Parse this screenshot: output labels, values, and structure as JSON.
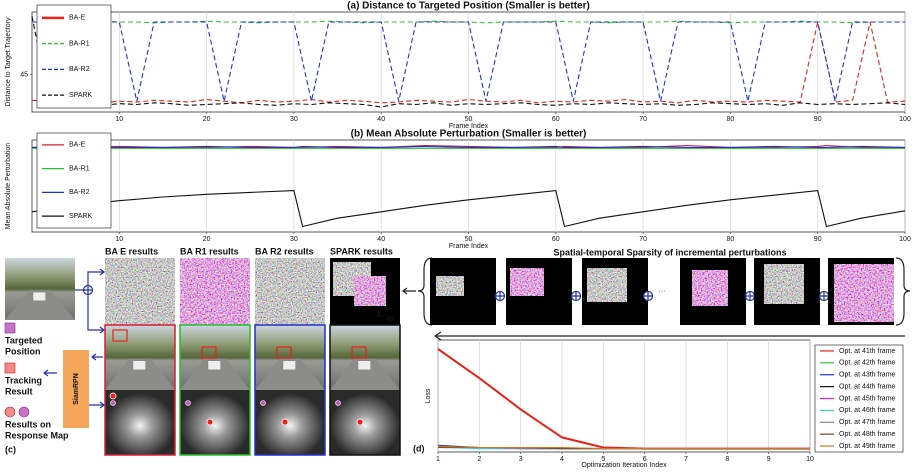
{
  "chart_data": [
    {
      "type": "line",
      "title": "(a) Distance to Targeted Position (Smaller is better)",
      "xlabel": "Frame Index",
      "ylabel": "Distance to Target Trajectory",
      "x": [
        0,
        2,
        4,
        6,
        8,
        10,
        12,
        14,
        16,
        18,
        20,
        22,
        24,
        26,
        28,
        30,
        32,
        34,
        36,
        38,
        40,
        42,
        44,
        46,
        48,
        50,
        52,
        54,
        56,
        58,
        60,
        62,
        64,
        66,
        68,
        70,
        72,
        74,
        76,
        78,
        80,
        82,
        84,
        86,
        88,
        90,
        92,
        94,
        96,
        98,
        100
      ],
      "series": [
        {
          "name": "BA-E",
          "color": "#e8221b",
          "linestyle": "dashed",
          "values": [
            14,
            13,
            12,
            15,
            11,
            13,
            12,
            14,
            13,
            12,
            15,
            13,
            11,
            14,
            12,
            13,
            15,
            12,
            14,
            13,
            11,
            12,
            14,
            13,
            12,
            15,
            13,
            12,
            14,
            11,
            13,
            12,
            14,
            13,
            15,
            12,
            13,
            11,
            14,
            12,
            13,
            12,
            14,
            13,
            12,
            108,
            12,
            14,
            108,
            12,
            13
          ]
        },
        {
          "name": "BA-R1",
          "color": "#2fbf2f",
          "linestyle": "dashed",
          "values": [
            108,
            108,
            107,
            108,
            109,
            108,
            108,
            107,
            108,
            108,
            109,
            108,
            108,
            107,
            108,
            108,
            108,
            109,
            108,
            107,
            108,
            108,
            108,
            109,
            108,
            108,
            107,
            108,
            108,
            108,
            109,
            108,
            108,
            107,
            108,
            108,
            108,
            109,
            108,
            108,
            107,
            108,
            108,
            108,
            109,
            108,
            108,
            107,
            108,
            108,
            108
          ]
        },
        {
          "name": "BA-R2",
          "color": "#1d35c9",
          "linestyle": "dashed",
          "values": [
            108,
            108,
            108,
            108,
            108,
            108,
            13,
            108,
            108,
            108,
            108,
            13,
            108,
            108,
            108,
            108,
            13,
            108,
            108,
            108,
            108,
            13,
            108,
            108,
            108,
            108,
            13,
            108,
            108,
            108,
            108,
            13,
            108,
            108,
            108,
            108,
            13,
            108,
            108,
            108,
            108,
            13,
            108,
            108,
            108,
            108,
            13,
            108,
            108,
            108,
            108
          ]
        },
        {
          "name": "SPARK",
          "color": "#111111",
          "linestyle": "dashed",
          "values": [
            115,
            10,
            9,
            11,
            8,
            10,
            9,
            11,
            10,
            8,
            9,
            10,
            11,
            9,
            8,
            10,
            9,
            11,
            10,
            9,
            6,
            10,
            9,
            11,
            8,
            10,
            9,
            10,
            11,
            9,
            8,
            10,
            9,
            11,
            10,
            9,
            10,
            8,
            9,
            11,
            10,
            9,
            10,
            8,
            11,
            9,
            10,
            9,
            10,
            11,
            9
          ]
        }
      ],
      "xlim": [
        0,
        100
      ],
      "ylim": [
        0,
        120
      ],
      "xticks": [
        10,
        20,
        30,
        40,
        50,
        60,
        70,
        80,
        90,
        100
      ],
      "yticks": [
        45
      ],
      "grid": "x",
      "legend": "upper left"
    },
    {
      "type": "line",
      "title": "(b) Mean Absolute Perturbation (Smaller is better)",
      "xlabel": "Frame Index",
      "ylabel": "Mean Absolute Perturbation",
      "x": [
        0,
        5,
        10,
        15,
        20,
        25,
        30,
        31,
        35,
        40,
        45,
        50,
        55,
        60,
        61,
        65,
        70,
        75,
        80,
        85,
        90,
        91,
        95,
        100
      ],
      "series": [
        {
          "name": "BA-E",
          "color": "#d81e3a",
          "linestyle": "solid",
          "values": [
            9.2,
            9.2,
            9.3,
            9.2,
            9.2,
            9.3,
            9.2,
            9.2,
            9.3,
            9.2,
            9.4,
            9.3,
            9.2,
            9.2,
            9.3,
            9.2,
            9.2,
            9.4,
            9.2,
            9.2,
            9.3,
            9.4,
            9.2,
            9.2
          ]
        },
        {
          "name": "BA-R1",
          "color": "#22c02a",
          "linestyle": "solid",
          "values": [
            9.1,
            9.1,
            9.1,
            9.1,
            9.1,
            9.1,
            9.1,
            9.1,
            9.1,
            9.1,
            9.1,
            9.1,
            9.1,
            9.1,
            9.1,
            9.1,
            9.1,
            9.1,
            9.1,
            9.1,
            9.1,
            9.1,
            9.1,
            9.1
          ]
        },
        {
          "name": "BA-R2",
          "color": "#2330c8",
          "linestyle": "solid",
          "values": [
            9.2,
            9.3,
            9.2,
            9.2,
            9.3,
            9.2,
            9.2,
            9.3,
            9.2,
            9.2,
            9.3,
            9.2,
            9.2,
            9.3,
            9.2,
            9.2,
            9.3,
            9.2,
            9.2,
            9.3,
            9.2,
            9.2,
            9.3,
            9.2
          ]
        },
        {
          "name": "SPARK",
          "color": "#111111",
          "linestyle": "solid",
          "values": [
            2.2,
            2.9,
            3.4,
            3.8,
            4.1,
            4.3,
            4.5,
            0.6,
            1.5,
            2.2,
            2.9,
            3.5,
            4.0,
            4.5,
            0.6,
            1.5,
            2.2,
            2.9,
            3.5,
            4.0,
            4.5,
            0.6,
            1.5,
            2.3
          ]
        }
      ],
      "xlim": [
        0,
        100
      ],
      "ylim": [
        0,
        10
      ],
      "xticks": [
        10,
        20,
        30,
        40,
        50,
        60,
        70,
        80,
        90,
        100
      ],
      "grid": "x",
      "legend": "upper left"
    },
    {
      "type": "line",
      "xlabel": "Optimization Iteration Index",
      "ylabel": "Loss",
      "x": [
        1,
        2,
        3,
        4,
        5,
        6,
        7,
        8,
        9,
        10
      ],
      "series": [
        {
          "name": "Opt. at 41th frame",
          "color": "#e8221b",
          "linestyle": "solid",
          "values": [
            0.92,
            0.66,
            0.38,
            0.13,
            0.04,
            0.03,
            0.03,
            0.03,
            0.03,
            0.03
          ]
        },
        {
          "name": "Opt. at 42th frame",
          "color": "#2fbf2f",
          "linestyle": "solid",
          "values": [
            0.05,
            0.04,
            0.03,
            0.03,
            0.03,
            0.03,
            0.03,
            0.03,
            0.03,
            0.03
          ]
        },
        {
          "name": "Opt. at 43th frame",
          "color": "#1d35c9",
          "linestyle": "solid",
          "values": [
            0.06,
            0.04,
            0.04,
            0.03,
            0.03,
            0.03,
            0.03,
            0.03,
            0.03,
            0.03
          ]
        },
        {
          "name": "Opt. at 44th frame",
          "color": "#111111",
          "linestyle": "solid",
          "values": [
            0.04,
            0.04,
            0.03,
            0.03,
            0.03,
            0.03,
            0.03,
            0.03,
            0.03,
            0.03
          ]
        },
        {
          "name": "Opt. at 45th frame",
          "color": "#e01fd6",
          "linestyle": "solid",
          "values": [
            0.05,
            0.03,
            0.03,
            0.03,
            0.03,
            0.03,
            0.03,
            0.03,
            0.03,
            0.03
          ]
        },
        {
          "name": "Opt. at 46th frame",
          "color": "#2fd6d6",
          "linestyle": "solid",
          "values": [
            0.04,
            0.03,
            0.03,
            0.03,
            0.03,
            0.03,
            0.03,
            0.03,
            0.03,
            0.03
          ]
        },
        {
          "name": "Opt. at 47th frame",
          "color": "#8a7f9a",
          "linestyle": "solid",
          "values": [
            0.05,
            0.04,
            0.03,
            0.03,
            0.03,
            0.03,
            0.03,
            0.03,
            0.03,
            0.03
          ]
        },
        {
          "name": "Opt. at 48th frame",
          "color": "#7a4a22",
          "linestyle": "solid",
          "values": [
            0.04,
            0.04,
            0.04,
            0.03,
            0.03,
            0.03,
            0.03,
            0.03,
            0.03,
            0.03
          ]
        },
        {
          "name": "Opt. at 49th frame",
          "color": "#d07a1a",
          "linestyle": "solid",
          "values": [
            0.05,
            0.04,
            0.04,
            0.04,
            0.03,
            0.03,
            0.03,
            0.03,
            0.03,
            0.03
          ]
        }
      ],
      "xlim": [
        1,
        10
      ],
      "ylim": [
        0,
        1
      ],
      "xticks": [
        1,
        2,
        3,
        4,
        5,
        6,
        7,
        8,
        9,
        10
      ],
      "grid": "x",
      "legend": "outside right"
    }
  ],
  "diagram": {
    "columns": [
      "BA E results",
      "BA R1 results",
      "BA R2 results",
      "SPARK results"
    ],
    "sparsity_title": "Spatial-temporal Sparsity of incremental perturbations",
    "ellipsis": "···",
    "e_label": "E",
    "e_subscript": "49",
    "legend": [
      [
        "Targeted",
        "Position"
      ],
      [
        "Tracking",
        "Result"
      ],
      [
        "Results on",
        "Response Map"
      ]
    ],
    "tracker": "SiamRPN",
    "panel_c": "(c)",
    "panel_d": "(d)"
  }
}
